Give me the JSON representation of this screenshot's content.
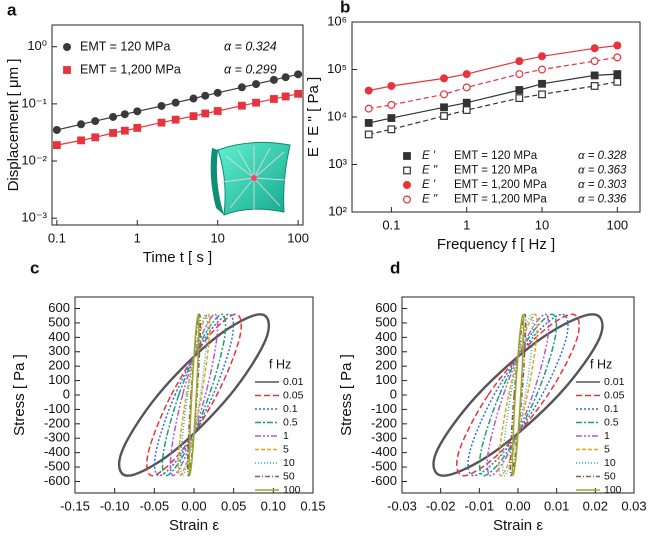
{
  "chart_data": [
    {
      "type": "scatter",
      "panel": "a",
      "x_label": "Time t [ s ]",
      "y_label": "Displacement [ μm ]",
      "log_x": true,
      "log_y": true,
      "legend_position": "top-left",
      "xlim": [
        0.087,
        115
      ],
      "ylim": [
        0.00076,
        2.4
      ],
      "xticks": [
        0.1,
        1,
        10,
        100
      ],
      "yticks": [
        {
          "value": 0.001,
          "label": "10⁻³"
        },
        {
          "value": 0.01,
          "label": "10⁻²"
        },
        {
          "value": 0.1,
          "label": "10⁻¹"
        },
        {
          "value": 1,
          "label": "10⁰"
        }
      ],
      "x": [
        0.1,
        0.2,
        0.3,
        0.5,
        0.7,
        1,
        2,
        3,
        5,
        7,
        10,
        20,
        30,
        50,
        70,
        100
      ],
      "series": [
        {
          "name": "EMT = 120 MPa",
          "alpha_label": "α = 0.324",
          "color": "#3a3a3a",
          "marker": "circle",
          "filled": true,
          "line_dash": false,
          "values": [
            0.035,
            0.044,
            0.05,
            0.059,
            0.066,
            0.074,
            0.092,
            0.105,
            0.124,
            0.139,
            0.156,
            0.195,
            0.222,
            0.263,
            0.293,
            0.329
          ]
        },
        {
          "name": "EMT = 1,200 MPa",
          "alpha_label": "α = 0.299",
          "color": "#e8323c",
          "marker": "square",
          "filled": true,
          "line_dash": false,
          "values": [
            0.019,
            0.023,
            0.026,
            0.031,
            0.034,
            0.038,
            0.047,
            0.053,
            0.061,
            0.068,
            0.075,
            0.093,
            0.105,
            0.122,
            0.135,
            0.15
          ]
        }
      ]
    },
    {
      "type": "scatter",
      "panel": "b",
      "x_label": "Frequency f [ Hz ]",
      "y_label": "E '  E '' [ Pa ]",
      "log_x": true,
      "log_y": true,
      "legend_position": "bottom-right",
      "xlim": [
        0.03,
        200
      ],
      "ylim": [
        100,
        1000000
      ],
      "xticks": [
        0.1,
        1,
        10,
        100
      ],
      "yticks": [
        {
          "value": 100,
          "label": "10²"
        },
        {
          "value": 1000,
          "label": "10³"
        },
        {
          "value": 10000,
          "label": "10⁴"
        },
        {
          "value": 100000,
          "label": "10⁵"
        },
        {
          "value": 1000000,
          "label": "10⁶"
        }
      ],
      "x": [
        0.05,
        0.1,
        0.5,
        1,
        5,
        10,
        50,
        100
      ],
      "series": [
        {
          "name": "E '",
          "modulus_label": "EMT = 120 MPa",
          "alpha_label": "α = 0.328",
          "color": "#333333",
          "marker": "square",
          "filled": true,
          "line_dash": false,
          "values": [
            7500,
            9500,
            16000,
            20000,
            37000,
            50000,
            75000,
            80000
          ]
        },
        {
          "name": "E ''",
          "modulus_label": "EMT = 120 MPa",
          "alpha_label": "α = 0.363",
          "color": "#333333",
          "marker": "square",
          "filled": false,
          "line_dash": true,
          "values": [
            4300,
            5500,
            10500,
            14000,
            25000,
            30000,
            45000,
            55000
          ]
        },
        {
          "name": "E '",
          "modulus_label": "EMT = 1,200 MPa",
          "alpha_label": "α = 0.303",
          "color": "#e8323c",
          "marker": "circle",
          "filled": true,
          "line_dash": false,
          "values": [
            36000,
            45000,
            65000,
            80000,
            150000,
            190000,
            280000,
            320000
          ]
        },
        {
          "name": "E ''",
          "modulus_label": "EMT = 1,200 MPa",
          "alpha_label": "α = 0.336",
          "color": "#e8323c",
          "marker": "circle",
          "filled": false,
          "line_dash": true,
          "values": [
            15000,
            18000,
            30000,
            42000,
            80000,
            100000,
            150000,
            180000
          ]
        }
      ]
    },
    {
      "type": "loop",
      "panel": "c",
      "x_label": "Strain ε",
      "y_label": "Stress [ Pa ]",
      "legend_title": "f  Hz",
      "legend_position": "right",
      "xlim": [
        -0.15,
        0.15
      ],
      "ylim": [
        -680,
        680
      ],
      "xticks": [
        -0.15,
        {
          "value": -0.1,
          "label": "-0.10"
        },
        -0.05,
        {
          "value": 0,
          "label": "0.00"
        },
        0.05,
        {
          "value": 0.1,
          "label": "0.10"
        },
        0.15
      ],
      "yticks": [
        -600,
        -500,
        -400,
        -300,
        -200,
        -100,
        0,
        100,
        200,
        300,
        400,
        500,
        600
      ],
      "series": [
        {
          "name": "0.01",
          "color": "#555555",
          "dash": "",
          "x": [
            -0.0455,
            0.0268,
            0.0834,
            0.0911,
            0.0455,
            -0.0268,
            -0.0834,
            -0.0911
          ],
          "y": [
            0,
            396,
            560,
            396,
            0,
            -396,
            -560,
            -396
          ]
        },
        {
          "name": "0.05",
          "color": "#e8323c",
          "dash": "6 3",
          "x": [
            -0.0287,
            0.0169,
            0.0527,
            0.0575,
            0.0287,
            -0.0169,
            -0.0527,
            -0.0575
          ],
          "y": [
            0,
            396,
            560,
            396,
            0,
            -396,
            -560,
            -396
          ]
        },
        {
          "name": "0.1",
          "color": "#2f6fd6",
          "dash": "2 2",
          "x": [
            -0.024,
            0.0141,
            0.0439,
            0.048,
            0.024,
            -0.0141,
            -0.0439,
            -0.048
          ],
          "y": [
            0,
            396,
            560,
            396,
            0,
            -396,
            -560,
            -396
          ]
        },
        {
          "name": "0.5",
          "color": "#1e9e7a",
          "dash": "6 2 2 2",
          "x": [
            -0.0192,
            0.0113,
            0.0351,
            0.0384,
            0.0192,
            -0.0113,
            -0.0351,
            -0.0384
          ],
          "y": [
            0,
            396,
            560,
            396,
            0,
            -396,
            -560,
            -396
          ]
        },
        {
          "name": "1",
          "color": "#b05ad6",
          "dash": "6 2 2 2 2 2",
          "x": [
            -0.0144,
            0.0085,
            0.0263,
            0.0288,
            0.0144,
            -0.0085,
            -0.0263,
            -0.0288
          ],
          "y": [
            0,
            396,
            560,
            396,
            0,
            -396,
            -560,
            -396
          ]
        },
        {
          "name": "5",
          "color": "#f0a020",
          "dash": "4 2",
          "x": [
            -0.0096,
            0.0056,
            0.0176,
            0.0192,
            0.0096,
            -0.0056,
            -0.0176,
            -0.0192
          ],
          "y": [
            0,
            396,
            560,
            396,
            0,
            -396,
            -560,
            -396
          ]
        },
        {
          "name": "10",
          "color": "#20b8c8",
          "dash": "1 2",
          "x": [
            -0.0081,
            0.0048,
            0.0149,
            0.0163,
            0.0081,
            -0.0048,
            -0.0149,
            -0.0163
          ],
          "y": [
            0,
            396,
            560,
            396,
            0,
            -396,
            -560,
            -396
          ]
        },
        {
          "name": "50",
          "color": "#8a5a4a",
          "dash": "5 2 1 2",
          "x": [
            -0.0038,
            0.0023,
            0.007,
            0.0077,
            0.0038,
            -0.0023,
            -0.007,
            -0.0077
          ],
          "y": [
            0,
            396,
            560,
            396,
            0,
            -396,
            -560,
            -396
          ]
        },
        {
          "name": "100",
          "color": "#9aa82a",
          "dash": "",
          "x": [
            -0.0029,
            0.0017,
            0.0053,
            0.0058,
            0.0029,
            -0.0017,
            -0.0053,
            -0.0058
          ],
          "y": [
            0,
            396,
            560,
            396,
            0,
            -396,
            -560,
            -396
          ]
        }
      ]
    },
    {
      "type": "loop",
      "panel": "d",
      "x_label": "Strain ε",
      "y_label": "Stress [ Pa ]",
      "legend_title": "f  Hz",
      "legend_position": "right",
      "xlim": [
        -0.03,
        0.03
      ],
      "ylim": [
        -680,
        680
      ],
      "xticks": [
        -0.03,
        -0.02,
        -0.01,
        {
          "value": 0,
          "label": "0.00"
        },
        0.01,
        0.02,
        0.03
      ],
      "yticks": [
        -600,
        -500,
        -400,
        -300,
        -200,
        -100,
        0,
        100,
        200,
        300,
        400,
        500,
        600
      ],
      "series": [
        {
          "name": "0.01",
          "color": "#555555",
          "dash": "",
          "x": [
            -0.0105,
            0.0062,
            0.0193,
            0.0211,
            0.0105,
            -0.0062,
            -0.0193,
            -0.0211
          ],
          "y": [
            0,
            396,
            560,
            396,
            0,
            -396,
            -560,
            -396
          ]
        },
        {
          "name": "0.05",
          "color": "#e8323c",
          "dash": "6 3",
          "x": [
            -0.0077,
            0.0045,
            0.014,
            0.0153,
            0.0077,
            -0.0045,
            -0.014,
            -0.0153
          ],
          "y": [
            0,
            396,
            560,
            396,
            0,
            -396,
            -560,
            -396
          ]
        },
        {
          "name": "0.1",
          "color": "#2f6fd6",
          "dash": "2 2",
          "x": [
            -0.0062,
            0.0037,
            0.0114,
            0.0125,
            0.0062,
            -0.0037,
            -0.0114,
            -0.0125
          ],
          "y": [
            0,
            396,
            560,
            396,
            0,
            -396,
            -560,
            -396
          ]
        },
        {
          "name": "0.5",
          "color": "#1e9e7a",
          "dash": "6 2 2 2",
          "x": [
            -0.0048,
            0.0028,
            0.0088,
            0.0096,
            0.0048,
            -0.0028,
            -0.0088,
            -0.0096
          ],
          "y": [
            0,
            396,
            560,
            396,
            0,
            -396,
            -560,
            -396
          ]
        },
        {
          "name": "1",
          "color": "#b05ad6",
          "dash": "6 2 2 2 2 2",
          "x": [
            -0.0038,
            0.0023,
            0.007,
            0.0077,
            0.0038,
            -0.0023,
            -0.007,
            -0.0077
          ],
          "y": [
            0,
            396,
            560,
            396,
            0,
            -396,
            -560,
            -396
          ]
        },
        {
          "name": "5",
          "color": "#f0a020",
          "dash": "4 2",
          "x": [
            -0.0024,
            0.0014,
            0.0044,
            0.0048,
            0.0024,
            -0.0014,
            -0.0044,
            -0.0048
          ],
          "y": [
            0,
            396,
            560,
            396,
            0,
            -396,
            -560,
            -396
          ]
        },
        {
          "name": "10",
          "color": "#20b8c8",
          "dash": "1 2",
          "x": [
            -0.0019,
            0.0011,
            0.0035,
            0.0038,
            0.0019,
            -0.0011,
            -0.0035,
            -0.0038
          ],
          "y": [
            0,
            396,
            560,
            396,
            0,
            -396,
            -560,
            -396
          ]
        },
        {
          "name": "50",
          "color": "#8a5a4a",
          "dash": "5 2 1 2",
          "x": [
            -0.001,
            0.0006,
            0.0018,
            0.0019,
            0.001,
            -0.0006,
            -0.0018,
            -0.0019
          ],
          "y": [
            0,
            396,
            560,
            396,
            0,
            -396,
            -560,
            -396
          ]
        },
        {
          "name": "100",
          "color": "#9aa82a",
          "dash": "",
          "x": [
            -0.0007,
            0.0004,
            0.0013,
            0.0014,
            0.0007,
            -0.0004,
            -0.0013,
            -0.0014
          ],
          "y": [
            0,
            396,
            560,
            396,
            0,
            -396,
            -560,
            -396
          ]
        }
      ]
    }
  ]
}
